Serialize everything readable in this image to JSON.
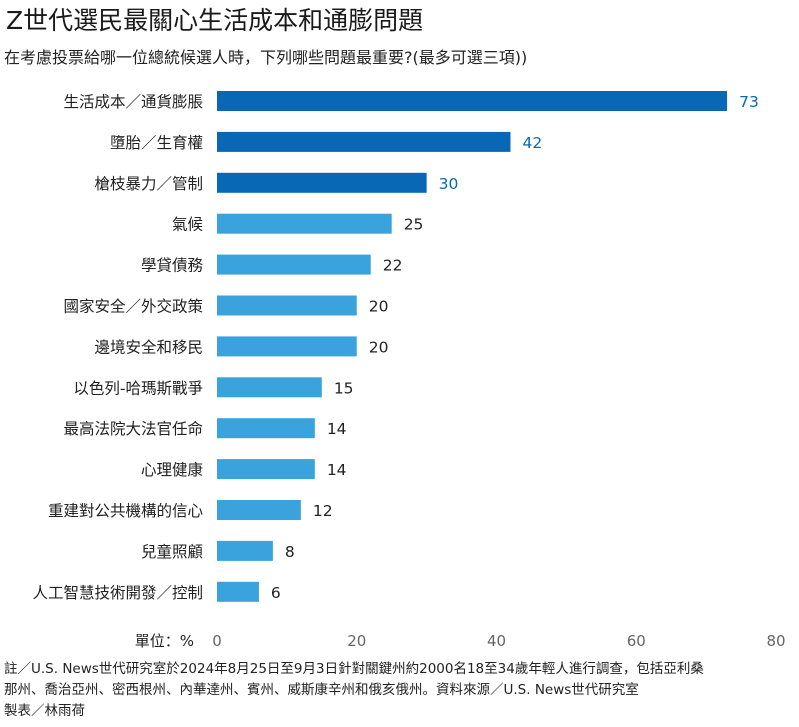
{
  "title": "Z世代選民最關心生活成本和通膨問題",
  "subtitle": "在考慮投票給哪一位總統候選人時，下列哪些問題最重要?(最多可選三項))",
  "colors": {
    "dark_bar": "#0868b5",
    "light_bar": "#3aa3dd",
    "dark_label": "#0868b5",
    "light_label": "#222222",
    "axis_text": "#666666"
  },
  "chart_data": {
    "type": "bar",
    "orientation": "horizontal",
    "categories": [
      "生活成本／通貨膨脹",
      "墮胎／生育權",
      "槍枝暴力／管制",
      "氣候",
      "學貸債務",
      "國家安全／外交政策",
      "邊境安全和移民",
      "以色列-哈瑪斯戰爭",
      "最高法院大法官任命",
      "心理健康",
      "重建對公共機構的信心",
      "兒童照顧",
      "人工智慧技術開發／控制"
    ],
    "values": [
      73,
      42,
      30,
      25,
      22,
      20,
      20,
      15,
      14,
      14,
      12,
      8,
      6
    ],
    "highlighted_count": 3,
    "xlim": [
      0,
      80
    ],
    "xticks": [
      "0",
      "20",
      "40",
      "60",
      "80"
    ],
    "unit_label": "單位：%",
    "grid": false
  },
  "footnote": {
    "lines": [
      "註／U.S. News世代研究室於2024年8月25日至9月3日針對關鍵州約2000名18至34歲年輕人進行調查，包括亞利桑",
      "那州、喬治亞州、密西根州、內華達州、賓州、威斯康辛州和俄亥俄州。資料來源／U.S. News世代研究室",
      "製表／林雨荷"
    ]
  }
}
